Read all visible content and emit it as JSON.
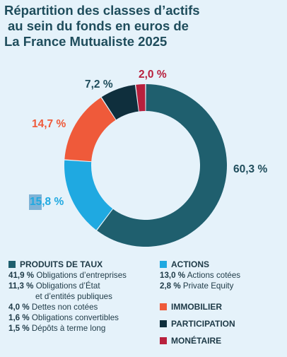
{
  "title": {
    "line1": "Répartition des classes d’actifs",
    "line2": "au sein du fonds en euros de",
    "line3": "La France Mutualiste 2025"
  },
  "colors": {
    "produits_de_taux": "#1f5f6e",
    "actions": "#1fa9e1",
    "immobilier": "#ef5a3a",
    "participation": "#0f2f3d",
    "monetaire": "#b8203d"
  },
  "chart_data": {
    "type": "pie",
    "donut": true,
    "title": "Répartition des classes d’actifs au sein du fonds en euros de La France Mutualiste 2025",
    "categories": [
      "PRODUITS DE TAUX",
      "ACTIONS",
      "IMMOBILIER",
      "PARTICIPATION",
      "MONÉTAIRE"
    ],
    "values": [
      60.3,
      15.8,
      14.7,
      7.2,
      2.0
    ],
    "labels": [
      "60,3 %",
      "15,8 %",
      "14,7 %",
      "7,2 %",
      "2,0 %"
    ]
  },
  "legend": {
    "produits_de_taux": {
      "label": "PRODUITS DE TAUX",
      "items": [
        {
          "value": "41,9 %",
          "text": "Obligations d’entreprises"
        },
        {
          "value": "11,3 %",
          "text": "Obligations d’État"
        },
        {
          "value": "",
          "text": "et d’entités publiques"
        },
        {
          "value": "4,0 %",
          "text": "Dettes non cotées"
        },
        {
          "value": "1,6 %",
          "text": "Obligations convertibles"
        },
        {
          "value": "1,5 %",
          "text": "Dépôts à terme long"
        }
      ]
    },
    "actions": {
      "label": "ACTIONS",
      "items": [
        {
          "value": "13,0 %",
          "text": "Actions cotées"
        },
        {
          "value": "2,8 %",
          "text": "Private Equity"
        }
      ]
    },
    "immobilier": {
      "label": "IMMOBILIER"
    },
    "participation": {
      "label": "PARTICIPATION"
    },
    "monetaire": {
      "label": "MONÉTAIRE"
    }
  }
}
